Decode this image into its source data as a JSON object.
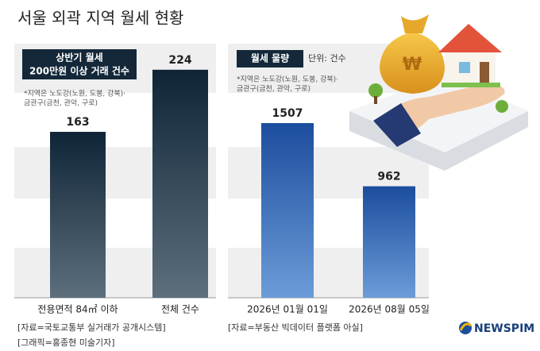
{
  "title": "서울 외곽 지역 월세 현황",
  "chart_data": [
    {
      "type": "bar",
      "title": [
        "상반기 월세",
        "200만원 이상 거래 건수"
      ],
      "note": [
        "*지역은 노도강(노원, 도봉, 강북)·",
        "금관구(금천, 관악, 구로)"
      ],
      "categories": [
        "전용면적 84㎡ 이하",
        "전체 건수"
      ],
      "values": [
        163,
        224
      ],
      "gradient": [
        "#0f2537",
        "#5d6f7d"
      ],
      "ylim": [
        0,
        234
      ],
      "source": [
        "[자료=국토교통부 실거래가 공개시스템]",
        "[그래픽=홍종현 미술기자]"
      ]
    },
    {
      "type": "bar",
      "title": [
        "월세 물량"
      ],
      "unit": "단위: 건수",
      "note": [
        "*지역은 노도강(노원, 도봉, 강북)·",
        "금관구(금천, 관악, 구로)"
      ],
      "categories": [
        "2026년 01월 01일",
        "2026년 08월 05일"
      ],
      "values": [
        1507,
        962
      ],
      "gradient": [
        "#1c4d9e",
        "#6c9cd8"
      ],
      "ylim": [
        0,
        2055
      ],
      "source": [
        "[자료=부동산 빅데이터 플랫폼 아실]"
      ]
    }
  ],
  "logo": "NEWSPIM"
}
